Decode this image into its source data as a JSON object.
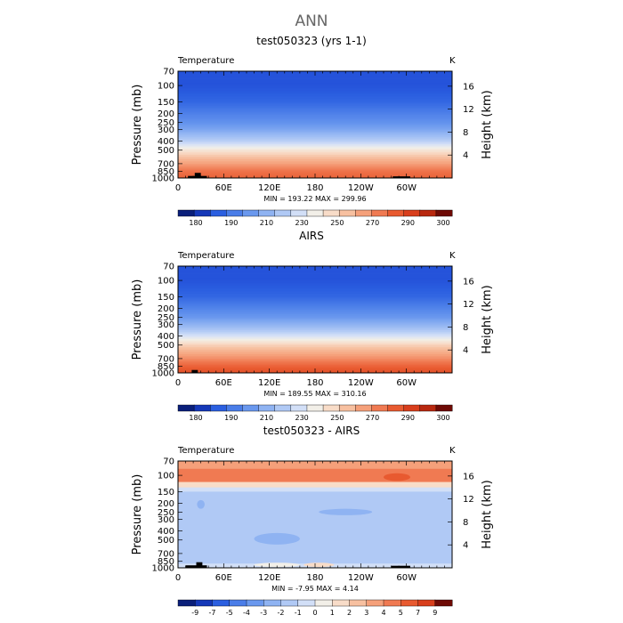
{
  "figure": {
    "title": "ANN"
  },
  "chart_data": [
    {
      "type": "heatmap",
      "title": "test050323 (yrs 1-1)",
      "variable_label": "Temperature",
      "units_label": "K",
      "ylabel_left": "Pressure (mb)",
      "ylabel_right": "Height (km)",
      "x_ticks": [
        "0",
        "60E",
        "120E",
        "180",
        "120W",
        "60W"
      ],
      "x_tick_values": [
        0,
        60,
        120,
        180,
        240,
        300
      ],
      "xlim": [
        0,
        360
      ],
      "pressure_ticks": [
        "70",
        "100",
        "150",
        "200",
        "250",
        "300",
        "400",
        "500",
        "700",
        "850",
        "1000"
      ],
      "pressure_tick_values": [
        70,
        100,
        150,
        200,
        250,
        300,
        400,
        500,
        700,
        850,
        1000
      ],
      "height_ticks": [
        "16",
        "12",
        "8",
        "4"
      ],
      "height_tick_values": [
        16,
        12,
        8,
        4
      ],
      "ylim_pressure": [
        70,
        1000
      ],
      "stats_text": "MIN = 193.22   MAX = 299.96",
      "min": 193.22,
      "max": 299.96,
      "colorbar_labels": [
        "180",
        "190",
        "210",
        "230",
        "250",
        "270",
        "290",
        "300"
      ],
      "colorbar_colors": [
        "#0a1f7a",
        "#1538b8",
        "#2b5fe0",
        "#4a7de8",
        "#6a98ee",
        "#8fb3f2",
        "#b0c9f5",
        "#d2dff7",
        "#f2efe8",
        "#f8dcc8",
        "#f7c0a0",
        "#f5a07a",
        "#f07a52",
        "#e85a30",
        "#d83e1c",
        "#b8280f",
        "#6e0a05"
      ],
      "stops": [
        [
          70,
          0.05
        ],
        [
          100,
          0.05
        ],
        [
          150,
          0.1
        ],
        [
          200,
          0.17
        ],
        [
          250,
          0.22
        ],
        [
          300,
          0.28
        ],
        [
          400,
          0.42
        ],
        [
          500,
          0.55
        ],
        [
          700,
          0.72
        ],
        [
          850,
          0.82
        ],
        [
          1000,
          0.86
        ]
      ],
      "topography": [
        {
          "lon": 13,
          "lon_end": 38,
          "top_pressure": 950
        },
        {
          "lon": 22,
          "lon_end": 30,
          "top_pressure": 880
        },
        {
          "lon": 282,
          "lon_end": 305,
          "top_pressure": 960
        }
      ]
    },
    {
      "type": "heatmap",
      "title": "AIRS",
      "variable_label": "Temperature",
      "units_label": "K",
      "ylabel_left": "Pressure (mb)",
      "ylabel_right": "Height (km)",
      "x_ticks": [
        "0",
        "60E",
        "120E",
        "180",
        "120W",
        "60W"
      ],
      "x_tick_values": [
        0,
        60,
        120,
        180,
        240,
        300
      ],
      "xlim": [
        0,
        360
      ],
      "pressure_ticks": [
        "70",
        "100",
        "150",
        "200",
        "250",
        "300",
        "400",
        "500",
        "700",
        "850",
        "1000"
      ],
      "pressure_tick_values": [
        70,
        100,
        150,
        200,
        250,
        300,
        400,
        500,
        700,
        850,
        1000
      ],
      "height_ticks": [
        "16",
        "12",
        "8",
        "4"
      ],
      "height_tick_values": [
        16,
        12,
        8,
        4
      ],
      "ylim_pressure": [
        70,
        1000
      ],
      "stats_text": "MIN = 189.55   MAX = 310.16",
      "min": 189.55,
      "max": 310.16,
      "colorbar_labels": [
        "180",
        "190",
        "210",
        "230",
        "250",
        "270",
        "290",
        "300"
      ],
      "colorbar_colors": [
        "#0a1f7a",
        "#1538b8",
        "#2b5fe0",
        "#4a7de8",
        "#6a98ee",
        "#8fb3f2",
        "#b0c9f5",
        "#d2dff7",
        "#f2efe8",
        "#f8dcc8",
        "#f7c0a0",
        "#f5a07a",
        "#f07a52",
        "#e85a30",
        "#d83e1c",
        "#b8280f",
        "#6e0a05"
      ],
      "stops": [
        [
          70,
          0.05
        ],
        [
          100,
          0.05
        ],
        [
          150,
          0.1
        ],
        [
          200,
          0.18
        ],
        [
          250,
          0.24
        ],
        [
          300,
          0.32
        ],
        [
          400,
          0.47
        ],
        [
          500,
          0.6
        ],
        [
          700,
          0.76
        ],
        [
          850,
          0.86
        ],
        [
          1000,
          0.92
        ]
      ],
      "topography": [
        {
          "lon": 18,
          "lon_end": 26,
          "top_pressure": 930
        }
      ]
    },
    {
      "type": "heatmap",
      "title": "test050323 - AIRS",
      "variable_label": "Temperature",
      "units_label": "K",
      "ylabel_left": "Pressure (mb)",
      "ylabel_right": "Height (km)",
      "x_ticks": [
        "0",
        "60E",
        "120E",
        "180",
        "120W",
        "60W"
      ],
      "x_tick_values": [
        0,
        60,
        120,
        180,
        240,
        300
      ],
      "xlim": [
        0,
        360
      ],
      "pressure_ticks": [
        "70",
        "100",
        "150",
        "200",
        "250",
        "300",
        "400",
        "500",
        "700",
        "850",
        "1000"
      ],
      "pressure_tick_values": [
        70,
        100,
        150,
        200,
        250,
        300,
        400,
        500,
        700,
        850,
        1000
      ],
      "height_ticks": [
        "16",
        "12",
        "8",
        "4"
      ],
      "height_tick_values": [
        16,
        12,
        8,
        4
      ],
      "ylim_pressure": [
        70,
        1000
      ],
      "stats_text": "MIN =   -7.95   MAX =    4.14",
      "min": -7.95,
      "max": 4.14,
      "colorbar_labels": [
        "-9",
        "-7",
        "-5",
        "-4",
        "-3",
        "-2",
        "-1",
        "0",
        "1",
        "2",
        "3",
        "4",
        "5",
        "7",
        "9"
      ],
      "colorbar_colors": [
        "#0a1f7a",
        "#1538b8",
        "#2b5fe0",
        "#4a7de8",
        "#6a98ee",
        "#8fb3f2",
        "#b0c9f5",
        "#d2dff7",
        "#f2efe8",
        "#f8dcc8",
        "#f7c0a0",
        "#f5a07a",
        "#f07a52",
        "#e85a30",
        "#d83e1c",
        "#6e0a05"
      ],
      "diff_bands": [
        [
          70,
          85,
          "#f5a07a"
        ],
        [
          85,
          118,
          "#f07a52"
        ],
        [
          118,
          135,
          "#f8dcc8"
        ],
        [
          135,
          150,
          "#d2dff7"
        ],
        [
          150,
          900,
          "#b0c9f5"
        ],
        [
          900,
          1000,
          "#d2dff7"
        ]
      ],
      "diff_blobs": [
        {
          "lon0": 100,
          "lon1": 160,
          "p0": 420,
          "p1": 560,
          "color": "#8fb3f2"
        },
        {
          "lon0": 185,
          "lon1": 255,
          "p0": 230,
          "p1": 270,
          "color": "#8fb3f2"
        },
        {
          "lon0": 25,
          "lon1": 35,
          "p0": 185,
          "p1": 230,
          "color": "#8fb3f2"
        },
        {
          "lon0": 270,
          "lon1": 305,
          "p0": 95,
          "p1": 115,
          "color": "#e85a30"
        },
        {
          "lon0": 100,
          "lon1": 160,
          "p0": 880,
          "p1": 980,
          "color": "#f2efe8"
        },
        {
          "lon0": 165,
          "lon1": 205,
          "p0": 880,
          "p1": 980,
          "color": "#f8dcc8"
        }
      ],
      "topography": [
        {
          "lon": 10,
          "lon_end": 38,
          "top_pressure": 940
        },
        {
          "lon": 24,
          "lon_end": 32,
          "top_pressure": 870
        },
        {
          "lon": 280,
          "lon_end": 305,
          "top_pressure": 950
        }
      ]
    }
  ]
}
